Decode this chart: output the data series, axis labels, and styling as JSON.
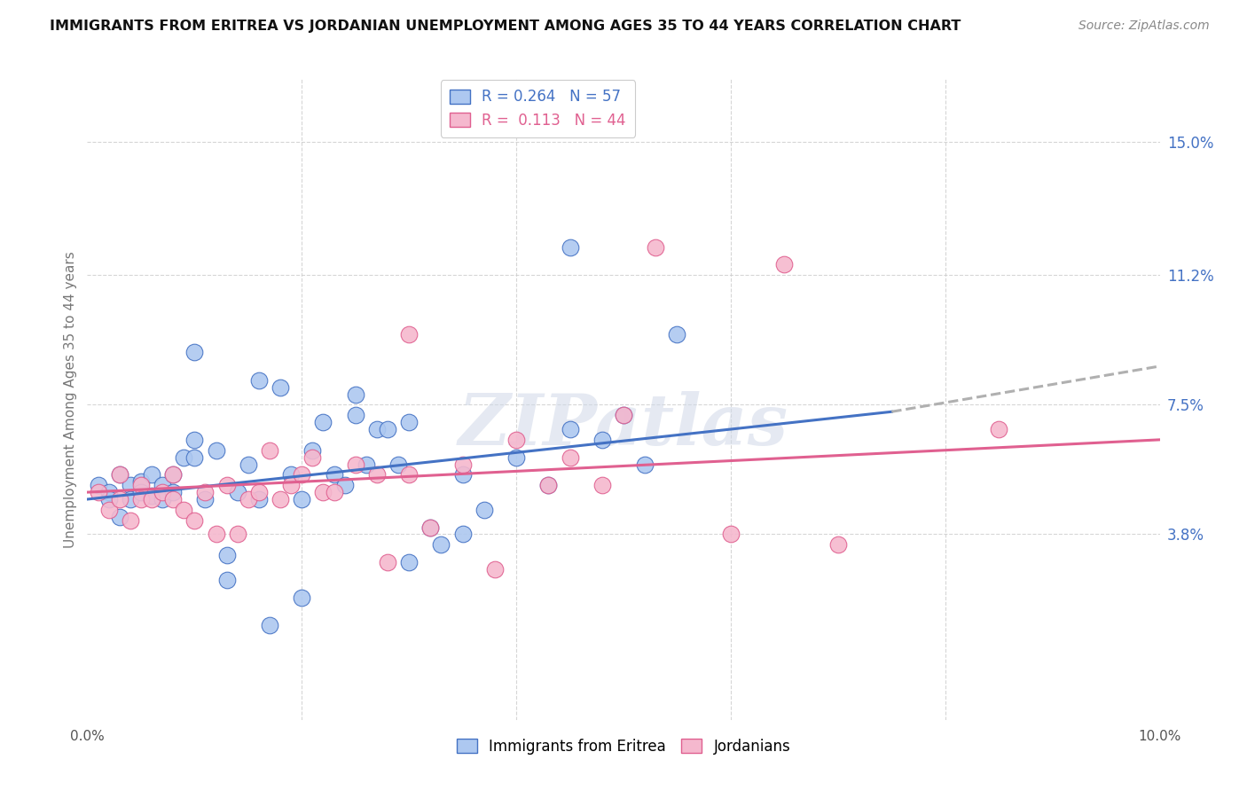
{
  "title": "IMMIGRANTS FROM ERITREA VS JORDANIAN UNEMPLOYMENT AMONG AGES 35 TO 44 YEARS CORRELATION CHART",
  "source": "Source: ZipAtlas.com",
  "ylabel": "Unemployment Among Ages 35 to 44 years",
  "ytick_labels": [
    "3.8%",
    "7.5%",
    "11.2%",
    "15.0%"
  ],
  "ytick_values": [
    0.038,
    0.075,
    0.112,
    0.15
  ],
  "xlim": [
    0.0,
    0.1
  ],
  "ylim": [
    -0.015,
    0.168
  ],
  "legend1_R": "0.264",
  "legend1_N": "57",
  "legend2_R": "0.113",
  "legend2_N": "44",
  "series1_color": "#adc8f0",
  "series2_color": "#f5b8ce",
  "trendline1_color": "#4472c4",
  "trendline2_color": "#e06090",
  "trendline1_dashed_color": "#b0b0b0",
  "scatter1_x": [
    0.001,
    0.002,
    0.002,
    0.003,
    0.003,
    0.004,
    0.004,
    0.005,
    0.005,
    0.006,
    0.006,
    0.007,
    0.007,
    0.008,
    0.008,
    0.009,
    0.01,
    0.01,
    0.011,
    0.012,
    0.013,
    0.014,
    0.015,
    0.016,
    0.017,
    0.018,
    0.019,
    0.02,
    0.021,
    0.022,
    0.023,
    0.024,
    0.025,
    0.026,
    0.027,
    0.028,
    0.029,
    0.03,
    0.032,
    0.033,
    0.035,
    0.037,
    0.04,
    0.043,
    0.045,
    0.048,
    0.05,
    0.052,
    0.055,
    0.01,
    0.013,
    0.016,
    0.02,
    0.025,
    0.03,
    0.035,
    0.045
  ],
  "scatter1_y": [
    0.052,
    0.05,
    0.048,
    0.055,
    0.043,
    0.052,
    0.048,
    0.053,
    0.05,
    0.055,
    0.049,
    0.052,
    0.048,
    0.055,
    0.05,
    0.06,
    0.065,
    0.06,
    0.048,
    0.062,
    0.032,
    0.05,
    0.058,
    0.048,
    0.012,
    0.08,
    0.055,
    0.048,
    0.062,
    0.07,
    0.055,
    0.052,
    0.072,
    0.058,
    0.068,
    0.068,
    0.058,
    0.07,
    0.04,
    0.035,
    0.055,
    0.045,
    0.06,
    0.052,
    0.068,
    0.065,
    0.072,
    0.058,
    0.095,
    0.09,
    0.025,
    0.082,
    0.02,
    0.078,
    0.03,
    0.038,
    0.12
  ],
  "scatter2_x": [
    0.001,
    0.002,
    0.003,
    0.003,
    0.004,
    0.005,
    0.005,
    0.006,
    0.007,
    0.008,
    0.008,
    0.009,
    0.01,
    0.011,
    0.012,
    0.013,
    0.014,
    0.015,
    0.016,
    0.017,
    0.018,
    0.019,
    0.02,
    0.021,
    0.022,
    0.023,
    0.025,
    0.027,
    0.028,
    0.03,
    0.032,
    0.035,
    0.038,
    0.04,
    0.043,
    0.045,
    0.048,
    0.05,
    0.053,
    0.06,
    0.065,
    0.07,
    0.085,
    0.03
  ],
  "scatter2_y": [
    0.05,
    0.045,
    0.055,
    0.048,
    0.042,
    0.052,
    0.048,
    0.048,
    0.05,
    0.055,
    0.048,
    0.045,
    0.042,
    0.05,
    0.038,
    0.052,
    0.038,
    0.048,
    0.05,
    0.062,
    0.048,
    0.052,
    0.055,
    0.06,
    0.05,
    0.05,
    0.058,
    0.055,
    0.03,
    0.055,
    0.04,
    0.058,
    0.028,
    0.065,
    0.052,
    0.06,
    0.052,
    0.072,
    0.12,
    0.038,
    0.115,
    0.035,
    0.068,
    0.095
  ],
  "trendline1_x_start": 0.0,
  "trendline1_x_solid_end": 0.075,
  "trendline1_x_end": 0.1,
  "trendline1_y_start": 0.048,
  "trendline1_y_solid_end": 0.073,
  "trendline1_y_end": 0.086,
  "trendline2_x_start": 0.0,
  "trendline2_x_end": 0.1,
  "trendline2_y_start": 0.05,
  "trendline2_y_end": 0.065,
  "watermark_text": "ZIPatlas",
  "background_color": "#ffffff"
}
